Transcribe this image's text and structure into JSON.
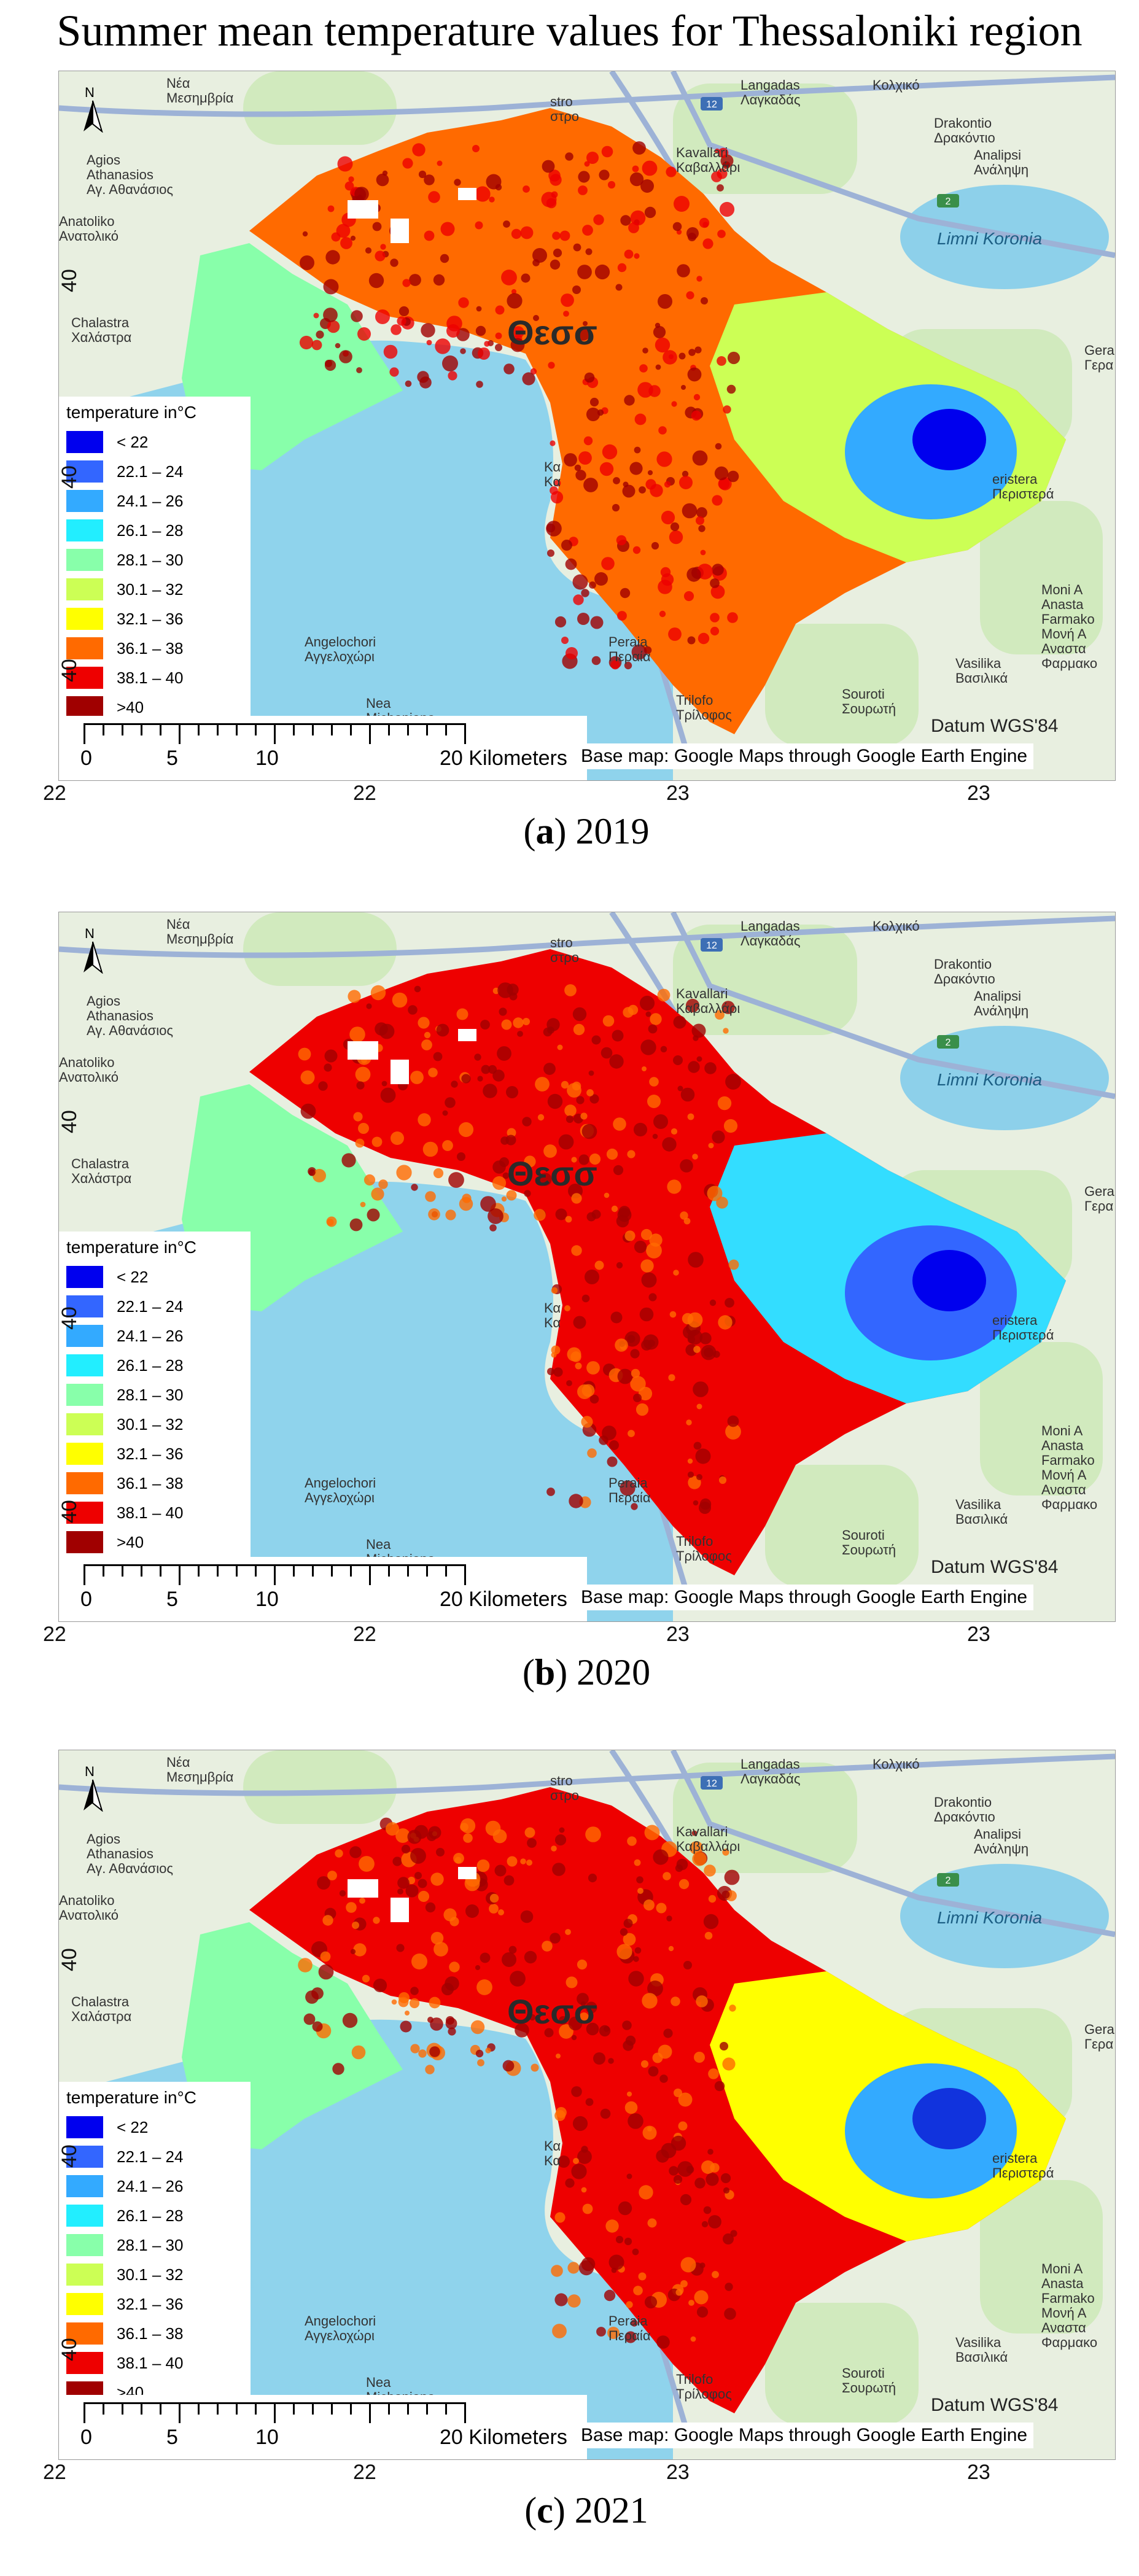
{
  "title": "Summer mean temperature values for Thessaloniki region",
  "legend": {
    "title": "temperature in°C",
    "classes": [
      {
        "label": "< 22",
        "color": "#0000ee"
      },
      {
        "label": "22.1 – 24",
        "color": "#3366ff"
      },
      {
        "label": "24.1 – 26",
        "color": "#33aaff"
      },
      {
        "label": "26.1 – 28",
        "color": "#22eeff"
      },
      {
        "label": "28.1 – 30",
        "color": "#88ffaa"
      },
      {
        "label": "30.1 – 32",
        "color": "#ccff55"
      },
      {
        "label": "32.1 – 36",
        "color": "#ffff00"
      },
      {
        "label": "36.1 – 38",
        "color": "#ff6a00"
      },
      {
        "label": "38.1 – 40",
        "color": "#ee0000"
      },
      {
        "label": ">40",
        "color": "#a00000"
      }
    ]
  },
  "scale": {
    "ticks": [
      "0",
      "5",
      "10"
    ],
    "end_label": "20 Kilometers"
  },
  "basemap_credit": "Base map: Google Maps through Google Earth Engine",
  "datum": "Datum WGS'84",
  "axis": {
    "x_labels": [
      "22",
      "22",
      "23",
      "23"
    ],
    "y_labels": [
      "40",
      "40",
      "40"
    ]
  },
  "places": {
    "langadas": "Langadas\nΛαγκαδάς",
    "kolchiko": "Κολχικό",
    "drakontio": "Drakontio\nΔρακόντιο",
    "analipsi": "Analipsi\nΑνάληψη",
    "kavallari": "Kavallari\nΚαβαλλάρι",
    "nea_mesimvria": "Νέα\nΜεσημβρία",
    "agios": "Agios\nAthanasios\nΑγ. Αθανάσιος",
    "anatoliko": "Anatoliko\nΑνατολικό",
    "chalastra": "Chalastra\nΧαλάστρα",
    "limni": "Limni Koronia",
    "thess": "Θεσσ",
    "gera": "Gera\nΓερα",
    "eristera": "eristera\nΠεριστερά",
    "moni": "Moni A\nAnasta\nFarmakо\nΜονή Α\nΑναστα\nΦαρμακο",
    "vasilika": "Vasilika\nΒασιλικά",
    "souroti": "Souroti\nΣουρωτή",
    "trilofo": "Trilofo\nΤρίλοφος",
    "peraia": "Peraia\nΠεραία",
    "angelochori": "Angelochori\nΑγγελοχώρι",
    "nea_michaniona": "Nea\nMichaniona",
    "stro": "stro\nστρο",
    "kala": "Κα\nΚα",
    "road12": "12",
    "road2": "2"
  },
  "panels": [
    {
      "caption_letter": "a",
      "caption_year": "2019",
      "colors": {
        "west": "#88ffaa",
        "central": "#ff6a00",
        "central2": "#ee0000",
        "east": "#ccff55",
        "hot": "#a00000",
        "cool": "#33aaff",
        "cold": "#0000ee"
      }
    },
    {
      "caption_letter": "b",
      "caption_year": "2020",
      "colors": {
        "west": "#88ffaa",
        "central": "#ee0000",
        "central2": "#ff6a00",
        "east": "#33ddff",
        "hot": "#a00000",
        "cool": "#3366ff",
        "cold": "#0000ee"
      }
    },
    {
      "caption_letter": "c",
      "caption_year": "2021",
      "colors": {
        "west": "#88ffaa",
        "central": "#ee0000",
        "central2": "#ff6a00",
        "east": "#ffff00",
        "hot": "#a00000",
        "cool": "#33aaff",
        "cold": "#1133dd"
      }
    }
  ],
  "colors": {
    "sea": "#8fd3ec",
    "land": "#e8efe0",
    "green": "#cbe8b5",
    "road": "#9db2d6",
    "lake": "#8dd0ea"
  }
}
